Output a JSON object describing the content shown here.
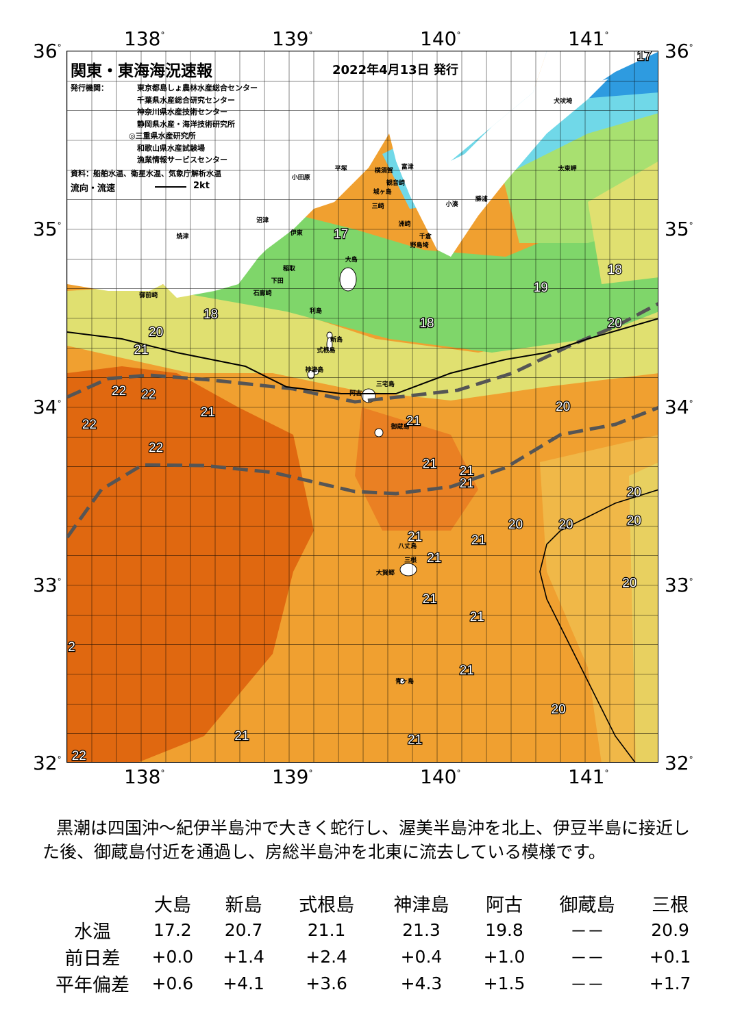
{
  "map": {
    "title": "関東・東海海況速報",
    "date": "2022年4月13日 発行",
    "publisher_label": "発行機関：",
    "publishers": [
      "東京都島しょ農林水産総合センター",
      "千葉県水産総合研究センター",
      "神奈川県水産技術センター",
      "静岡県水産・海洋技術研究所",
      "◎三重県水産研究所",
      "和歌山県水産試験場",
      "漁業情報サービスセンター"
    ],
    "source": "資料：船舶水温、衛星水温、気象庁解析水温",
    "flow_label": "流向・流速",
    "flow_scale": "2kt",
    "lon_ticks": [
      "138",
      "139",
      "140",
      "141"
    ],
    "lat_ticks": [
      "36",
      "35",
      "34",
      "33",
      "32"
    ],
    "degree_mark": "°",
    "colors": {
      "cold": "#2e9be0",
      "cool": "#7fd66a",
      "mild": "#e0e070",
      "warm": "#f0a030",
      "hot": "#e06810",
      "land": "#ffffff",
      "kuroshio_axis": "#555555"
    },
    "places": [
      {
        "name": "犬吠埼",
        "lon": 140.85,
        "lat": 35.71
      },
      {
        "name": "太東岬",
        "lon": 140.88,
        "lat": 35.33
      },
      {
        "name": "勝浦",
        "lon": 140.3,
        "lat": 35.16
      },
      {
        "name": "小湊",
        "lon": 140.1,
        "lat": 35.13
      },
      {
        "name": "富津",
        "lon": 139.8,
        "lat": 35.34
      },
      {
        "name": "横須賀",
        "lon": 139.64,
        "lat": 35.32
      },
      {
        "name": "観音崎",
        "lon": 139.72,
        "lat": 35.25
      },
      {
        "name": "城ヶ島",
        "lon": 139.63,
        "lat": 35.2
      },
      {
        "name": "三崎",
        "lon": 139.6,
        "lat": 35.12
      },
      {
        "name": "平塚",
        "lon": 139.35,
        "lat": 35.33
      },
      {
        "name": "小田原",
        "lon": 139.08,
        "lat": 35.28
      },
      {
        "name": "洲崎",
        "lon": 139.78,
        "lat": 35.02
      },
      {
        "name": "千倉",
        "lon": 139.92,
        "lat": 34.95
      },
      {
        "name": "野島埼",
        "lon": 139.88,
        "lat": 34.9
      },
      {
        "name": "伊東",
        "lon": 139.05,
        "lat": 34.97
      },
      {
        "name": "沼津",
        "lon": 138.82,
        "lat": 35.04
      },
      {
        "name": "焼津",
        "lon": 138.28,
        "lat": 34.95
      },
      {
        "name": "御前崎",
        "lon": 138.05,
        "lat": 34.62
      },
      {
        "name": "大島",
        "lon": 139.42,
        "lat": 34.82
      },
      {
        "name": "稲取",
        "lon": 139.0,
        "lat": 34.77
      },
      {
        "name": "下田",
        "lon": 138.92,
        "lat": 34.7
      },
      {
        "name": "石廊崎",
        "lon": 138.82,
        "lat": 34.63
      },
      {
        "name": "利島",
        "lon": 139.18,
        "lat": 34.53
      },
      {
        "name": "新島",
        "lon": 139.32,
        "lat": 34.37
      },
      {
        "name": "式根島",
        "lon": 139.25,
        "lat": 34.31
      },
      {
        "name": "神津島",
        "lon": 139.17,
        "lat": 34.2
      },
      {
        "name": "三宅島",
        "lon": 139.65,
        "lat": 34.12
      },
      {
        "name": "阿古",
        "lon": 139.45,
        "lat": 34.07
      },
      {
        "name": "御蔵島",
        "lon": 139.75,
        "lat": 33.88
      },
      {
        "name": "八丈島",
        "lon": 139.8,
        "lat": 33.21
      },
      {
        "name": "大賀郷",
        "lon": 139.65,
        "lat": 33.06
      },
      {
        "name": "三根",
        "lon": 139.82,
        "lat": 33.13
      },
      {
        "name": "青ヶ島",
        "lon": 139.78,
        "lat": 32.45
      }
    ],
    "temp_labels": [
      {
        "t": "17",
        "lon": 141.4,
        "lat": 35.95
      },
      {
        "t": "17",
        "lon": 139.35,
        "lat": 34.95
      },
      {
        "t": "18",
        "lon": 141.2,
        "lat": 34.75
      },
      {
        "t": "19",
        "lon": 140.7,
        "lat": 34.65
      },
      {
        "t": "18",
        "lon": 138.47,
        "lat": 34.5
      },
      {
        "t": "18",
        "lon": 139.93,
        "lat": 34.45
      },
      {
        "t": "20",
        "lon": 141.2,
        "lat": 34.45
      },
      {
        "t": "20",
        "lon": 138.1,
        "lat": 34.4
      },
      {
        "t": "21",
        "lon": 138.0,
        "lat": 34.3
      },
      {
        "t": "22",
        "lon": 137.85,
        "lat": 34.07
      },
      {
        "t": "22",
        "lon": 138.05,
        "lat": 34.05
      },
      {
        "t": "21",
        "lon": 138.45,
        "lat": 33.95
      },
      {
        "t": "20",
        "lon": 140.85,
        "lat": 33.98
      },
      {
        "t": "22",
        "lon": 137.65,
        "lat": 33.88
      },
      {
        "t": "21",
        "lon": 139.84,
        "lat": 33.9
      },
      {
        "t": "22",
        "lon": 138.1,
        "lat": 33.75
      },
      {
        "t": "21",
        "lon": 139.95,
        "lat": 33.66
      },
      {
        "t": "21",
        "lon": 140.2,
        "lat": 33.62
      },
      {
        "t": "21",
        "lon": 140.2,
        "lat": 33.55
      },
      {
        "t": "20",
        "lon": 141.33,
        "lat": 33.5
      },
      {
        "t": "20",
        "lon": 140.53,
        "lat": 33.32
      },
      {
        "t": "20",
        "lon": 140.87,
        "lat": 33.32
      },
      {
        "t": "20",
        "lon": 141.33,
        "lat": 33.34
      },
      {
        "t": "21",
        "lon": 139.85,
        "lat": 33.25
      },
      {
        "t": "21",
        "lon": 140.28,
        "lat": 33.23
      },
      {
        "t": "21",
        "lon": 139.98,
        "lat": 33.13
      },
      {
        "t": "20",
        "lon": 141.3,
        "lat": 32.99
      },
      {
        "t": "21",
        "lon": 139.95,
        "lat": 32.9
      },
      {
        "t": "21",
        "lon": 140.27,
        "lat": 32.8
      },
      {
        "t": "2",
        "lon": 137.53,
        "lat": 32.63
      },
      {
        "t": "21",
        "lon": 140.2,
        "lat": 32.5
      },
      {
        "t": "20",
        "lon": 140.82,
        "lat": 32.28
      },
      {
        "t": "21",
        "lon": 138.68,
        "lat": 32.13
      },
      {
        "t": "21",
        "lon": 139.85,
        "lat": 32.11
      },
      {
        "t": "22",
        "lon": 137.58,
        "lat": 32.02
      }
    ]
  },
  "description": "黒潮は四国沖～紀伊半島沖で大きく蛇行し、渥美半島沖を北上、伊豆半島に接近した後、御蔵島付近を通過し、房総半島沖を北東に流去している模様です。",
  "table": {
    "columns": [
      "大島",
      "新島",
      "式根島",
      "神津島",
      "阿古",
      "御蔵島",
      "三根"
    ],
    "rows": [
      {
        "label": "水温",
        "values": [
          "17.2",
          "20.7",
          "21.1",
          "21.3",
          "19.8",
          "－－",
          "20.9"
        ]
      },
      {
        "label": "前日差",
        "values": [
          "+0.0",
          "+1.4",
          "+2.4",
          "+0.4",
          "+1.0",
          "－－",
          "+0.1"
        ]
      },
      {
        "label": "平年偏差",
        "values": [
          "+0.6",
          "+4.1",
          "+3.6",
          "+4.3",
          "+1.5",
          "－－",
          "+1.7"
        ]
      }
    ]
  }
}
